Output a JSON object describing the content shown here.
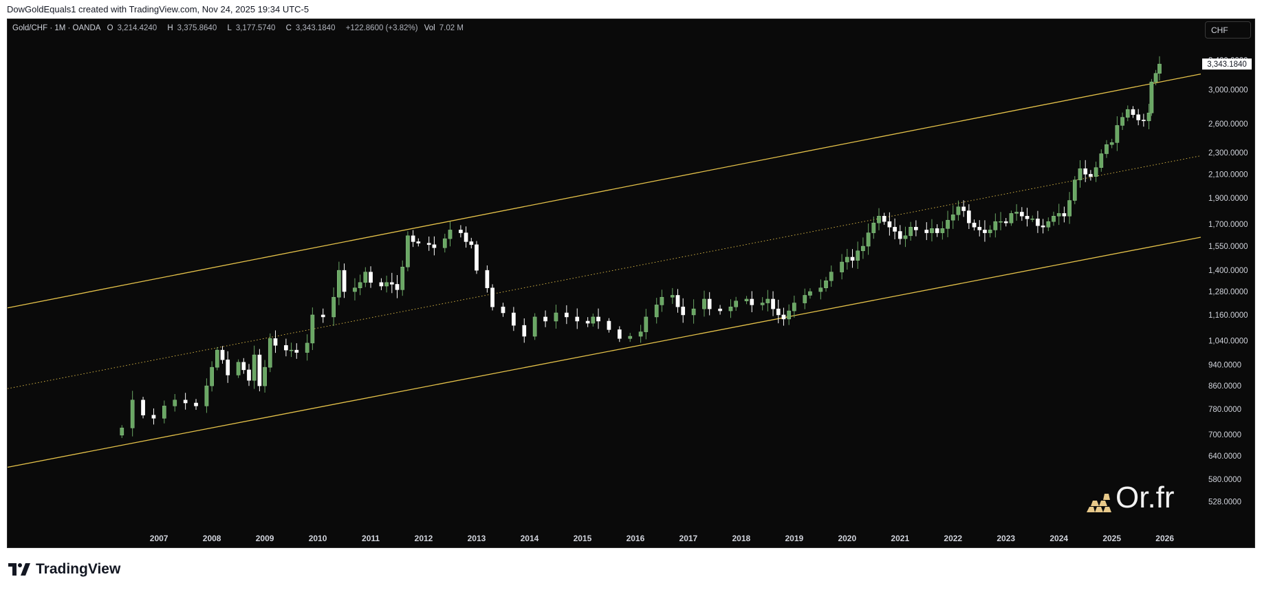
{
  "header": {
    "text": "DowGoldEquals1 created with TradingView.com, Nov 24, 2025 19:34 UTC-5"
  },
  "legend": {
    "symbol": "Gold/CHF · 1M · OANDA",
    "o_label": "O",
    "o_value": "3,214.4240",
    "h_label": "H",
    "h_value": "3,375.8640",
    "l_label": "L",
    "l_value": "3,177.5740",
    "c_label": "C",
    "c_value": "3,343.1840",
    "change": "+122.8600 (+3.82%)",
    "vol_label": "Vol",
    "vol_value": "7.02 M"
  },
  "currency_button": "CHF",
  "last_price_label": "3,343.1840",
  "watermark": "Or.fr",
  "footer": {
    "brand": "TradingView"
  },
  "colors": {
    "background": "#0a0a0a",
    "up": "#6aa764",
    "down": "#ffffff",
    "channel": "#e6c34a",
    "text": "#d1d4dc"
  },
  "chart_data": {
    "type": "candlestick",
    "symbol": "Gold/CHF",
    "interval": "1M",
    "scale": "log",
    "y_ticks": [
      528,
      580,
      640,
      700,
      780,
      860,
      940,
      1040,
      1160,
      1280,
      1400,
      1550,
      1700,
      1900,
      2100,
      2300,
      2600,
      3000,
      3400
    ],
    "y_tick_labels": [
      "528.0000",
      "580.0000",
      "640.0000",
      "700.0000",
      "780.0000",
      "860.0000",
      "940.0000",
      "1,040.0000",
      "1,160.0000",
      "1,280.0000",
      "1,400.0000",
      "1,550.0000",
      "1,700.0000",
      "1,900.0000",
      "2,100.0000",
      "2,300.0000",
      "2,600.0000",
      "3,000.0000",
      "3,400.0000"
    ],
    "ylim": [
      490,
      3900
    ],
    "x_labels": [
      "2007",
      "2008",
      "2009",
      "2010",
      "2011",
      "2012",
      "2013",
      "2014",
      "2015",
      "2016",
      "2017",
      "2018",
      "2019",
      "2020",
      "2021",
      "2022",
      "2023",
      "2024",
      "2025",
      "2026"
    ],
    "xlim": [
      2004.14,
      2026.68
    ],
    "channel": {
      "upper": [
        [
          2004.14,
          1195
        ],
        [
          2026.68,
          3205
        ]
      ],
      "lower": [
        [
          2004.14,
          610
        ],
        [
          2026.68,
          1610
        ]
      ],
      "median": [
        [
          2004.14,
          850
        ],
        [
          2026.68,
          2270
        ]
      ]
    },
    "monthly_closes": [
      [
        2006.3,
        720
      ],
      [
        2006.5,
        810
      ],
      [
        2006.7,
        760
      ],
      [
        2006.9,
        750
      ],
      [
        2007.1,
        790
      ],
      [
        2007.3,
        810
      ],
      [
        2007.5,
        800
      ],
      [
        2007.7,
        790
      ],
      [
        2007.9,
        860
      ],
      [
        2008.0,
        930
      ],
      [
        2008.1,
        1000
      ],
      [
        2008.2,
        960
      ],
      [
        2008.3,
        900
      ],
      [
        2008.5,
        950
      ],
      [
        2008.6,
        920
      ],
      [
        2008.7,
        880
      ],
      [
        2008.8,
        980
      ],
      [
        2008.9,
        860
      ],
      [
        2009.0,
        930
      ],
      [
        2009.1,
        1050
      ],
      [
        2009.2,
        1020
      ],
      [
        2009.4,
        1000
      ],
      [
        2009.5,
        1000
      ],
      [
        2009.6,
        990
      ],
      [
        2009.8,
        1030
      ],
      [
        2009.9,
        1160
      ],
      [
        2010.1,
        1150
      ],
      [
        2010.3,
        1250
      ],
      [
        2010.4,
        1400
      ],
      [
        2010.5,
        1280
      ],
      [
        2010.7,
        1300
      ],
      [
        2010.8,
        1330
      ],
      [
        2010.9,
        1390
      ],
      [
        2011.0,
        1330
      ],
      [
        2011.2,
        1310
      ],
      [
        2011.3,
        1330
      ],
      [
        2011.4,
        1320
      ],
      [
        2011.5,
        1290
      ],
      [
        2011.6,
        1420
      ],
      [
        2011.7,
        1620
      ],
      [
        2011.8,
        1580
      ],
      [
        2011.9,
        1570
      ],
      [
        2012.1,
        1560
      ],
      [
        2012.2,
        1540
      ],
      [
        2012.4,
        1600
      ],
      [
        2012.5,
        1660
      ],
      [
        2012.7,
        1640
      ],
      [
        2012.8,
        1580
      ],
      [
        2012.9,
        1560
      ],
      [
        2013.0,
        1400
      ],
      [
        2013.2,
        1300
      ],
      [
        2013.3,
        1200
      ],
      [
        2013.5,
        1170
      ],
      [
        2013.7,
        1110
      ],
      [
        2013.9,
        1060
      ],
      [
        2014.1,
        1150
      ],
      [
        2014.3,
        1130
      ],
      [
        2014.5,
        1170
      ],
      [
        2014.7,
        1150
      ],
      [
        2014.9,
        1130
      ],
      [
        2015.1,
        1120
      ],
      [
        2015.2,
        1150
      ],
      [
        2015.3,
        1130
      ],
      [
        2015.5,
        1090
      ],
      [
        2015.7,
        1050
      ],
      [
        2015.9,
        1060
      ],
      [
        2016.1,
        1080
      ],
      [
        2016.2,
        1150
      ],
      [
        2016.4,
        1210
      ],
      [
        2016.5,
        1250
      ],
      [
        2016.7,
        1260
      ],
      [
        2016.8,
        1200
      ],
      [
        2016.9,
        1160
      ],
      [
        2017.1,
        1190
      ],
      [
        2017.3,
        1240
      ],
      [
        2017.4,
        1190
      ],
      [
        2017.6,
        1180
      ],
      [
        2017.8,
        1200
      ],
      [
        2017.9,
        1230
      ],
      [
        2018.1,
        1240
      ],
      [
        2018.2,
        1210
      ],
      [
        2018.4,
        1220
      ],
      [
        2018.5,
        1240
      ],
      [
        2018.6,
        1190
      ],
      [
        2018.7,
        1160
      ],
      [
        2018.8,
        1140
      ],
      [
        2018.9,
        1180
      ],
      [
        2019.0,
        1220
      ],
      [
        2019.2,
        1260
      ],
      [
        2019.3,
        1280
      ],
      [
        2019.5,
        1300
      ],
      [
        2019.6,
        1340
      ],
      [
        2019.7,
        1390
      ],
      [
        2019.9,
        1450
      ],
      [
        2020.0,
        1480
      ],
      [
        2020.1,
        1460
      ],
      [
        2020.2,
        1520
      ],
      [
        2020.3,
        1550
      ],
      [
        2020.4,
        1640
      ],
      [
        2020.5,
        1710
      ],
      [
        2020.6,
        1760
      ],
      [
        2020.7,
        1720
      ],
      [
        2020.8,
        1680
      ],
      [
        2020.9,
        1650
      ],
      [
        2021.0,
        1600
      ],
      [
        2021.1,
        1620
      ],
      [
        2021.2,
        1680
      ],
      [
        2021.3,
        1660
      ],
      [
        2021.5,
        1640
      ],
      [
        2021.6,
        1670
      ],
      [
        2021.7,
        1640
      ],
      [
        2021.8,
        1670
      ],
      [
        2021.9,
        1730
      ],
      [
        2022.0,
        1770
      ],
      [
        2022.1,
        1830
      ],
      [
        2022.2,
        1800
      ],
      [
        2022.3,
        1710
      ],
      [
        2022.4,
        1680
      ],
      [
        2022.5,
        1660
      ],
      [
        2022.6,
        1640
      ],
      [
        2022.7,
        1660
      ],
      [
        2022.8,
        1720
      ],
      [
        2022.9,
        1720
      ],
      [
        2023.0,
        1710
      ],
      [
        2023.1,
        1780
      ],
      [
        2023.2,
        1790
      ],
      [
        2023.3,
        1760
      ],
      [
        2023.4,
        1740
      ],
      [
        2023.5,
        1740
      ],
      [
        2023.6,
        1690
      ],
      [
        2023.7,
        1680
      ],
      [
        2023.8,
        1720
      ],
      [
        2023.9,
        1760
      ],
      [
        2024.0,
        1780
      ],
      [
        2024.1,
        1760
      ],
      [
        2024.2,
        1880
      ],
      [
        2024.3,
        2050
      ],
      [
        2024.4,
        2150
      ],
      [
        2024.5,
        2100
      ],
      [
        2024.6,
        2080
      ],
      [
        2024.7,
        2160
      ],
      [
        2024.8,
        2290
      ],
      [
        2024.9,
        2380
      ],
      [
        2025.0,
        2400
      ],
      [
        2025.1,
        2580
      ],
      [
        2025.2,
        2670
      ],
      [
        2025.3,
        2760
      ],
      [
        2025.4,
        2700
      ],
      [
        2025.5,
        2640
      ],
      [
        2025.6,
        2630
      ],
      [
        2025.7,
        2720
      ],
      [
        2025.75,
        3100
      ],
      [
        2025.83,
        3214
      ],
      [
        2025.9,
        3343
      ]
    ]
  }
}
